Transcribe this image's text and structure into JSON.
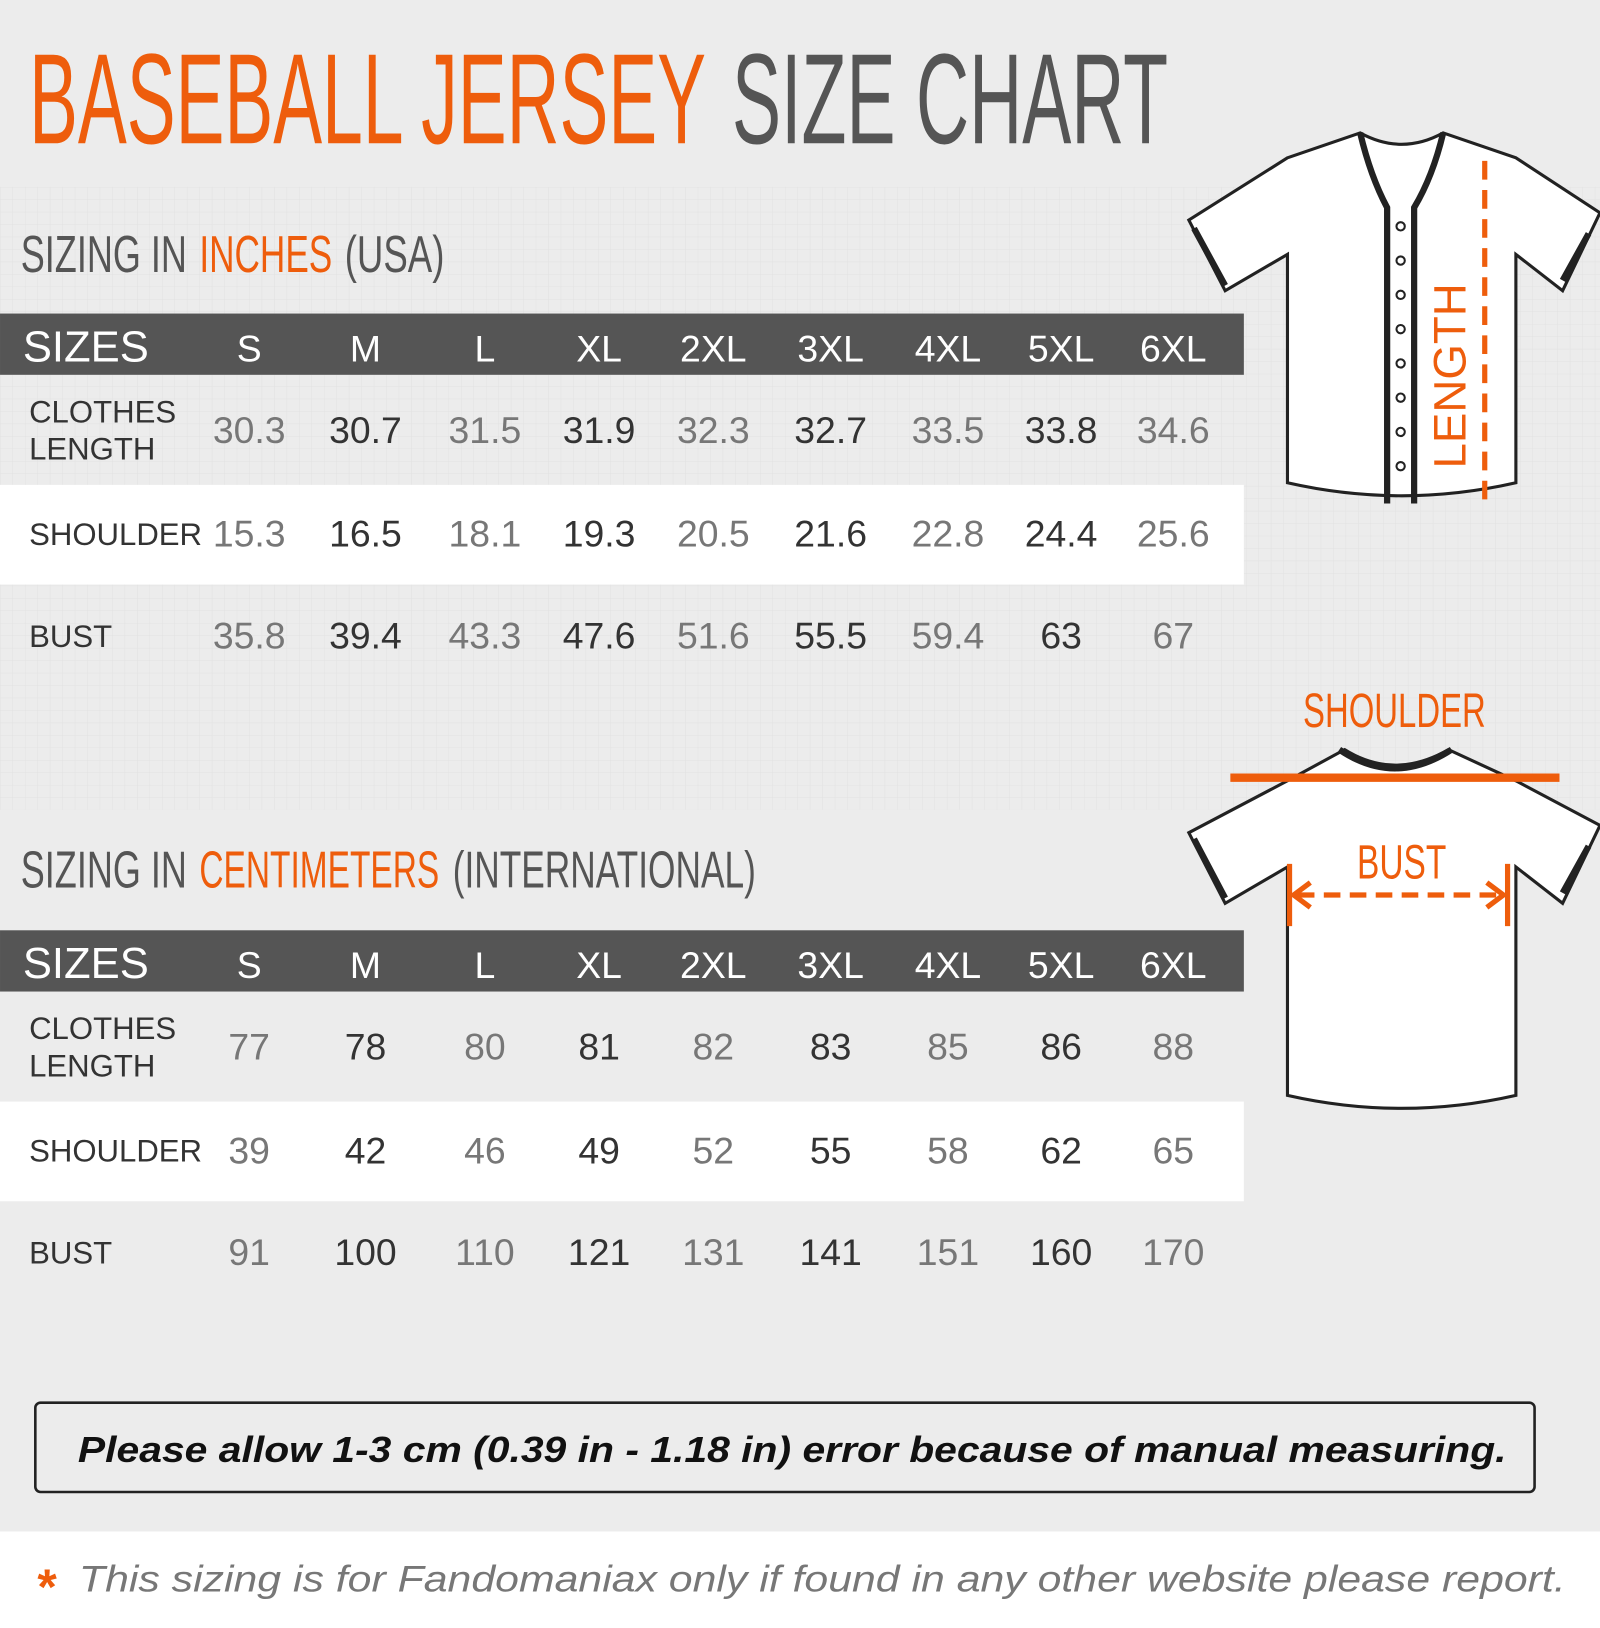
{
  "title": {
    "part1": "BASEBALL JERSEY",
    "part2": "SIZE CHART"
  },
  "inches": {
    "heading": {
      "prefix": "SIZING IN",
      "unit": "INCHES",
      "suffix": "(USA)"
    },
    "table": {
      "header": [
        "SIZES",
        "S",
        "M",
        "L",
        "XL",
        "2XL",
        "3XL",
        "4XL",
        "5XL",
        "6XL"
      ],
      "rows": [
        [
          "CLOTHES LENGTH",
          "30.3",
          "30.7",
          "31.5",
          "31.9",
          "32.3",
          "32.7",
          "33.5",
          "33.8",
          "34.6"
        ],
        [
          "SHOULDER",
          "15.3",
          "16.5",
          "18.1",
          "19.3",
          "20.5",
          "21.6",
          "22.8",
          "24.4",
          "25.6"
        ],
        [
          "BUST",
          "35.8",
          "39.4",
          "43.3",
          "47.6",
          "51.6",
          "55.5",
          "59.4",
          "63",
          "67"
        ]
      ]
    }
  },
  "centimeters": {
    "heading": {
      "prefix": "SIZING IN",
      "unit": "CENTIMETERS",
      "suffix": "(INTERNATIONAL)"
    },
    "table": {
      "header": [
        "SIZES",
        "S",
        "M",
        "L",
        "XL",
        "2XL",
        "3XL",
        "4XL",
        "5XL",
        "6XL"
      ],
      "rows": [
        [
          "CLOTHES LENGTH",
          "77",
          "78",
          "80",
          "81",
          "82",
          "83",
          "85",
          "86",
          "88"
        ],
        [
          "SHOULDER",
          "39",
          "42",
          "46",
          "49",
          "52",
          "55",
          "58",
          "62",
          "65"
        ],
        [
          "BUST",
          "91",
          "100",
          "110",
          "121",
          "131",
          "141",
          "151",
          "160",
          "170"
        ]
      ]
    }
  },
  "diagram": {
    "length": "LENGTH",
    "shoulder": "SHOULDER",
    "bust": "BUST"
  },
  "note": "Please allow 1-3 cm (0.39 in - 1.18 in) error because of manual measuring.",
  "footer": {
    "mark": "*",
    "text": "This sizing is for Fandomaniax only if found in any other website please report."
  }
}
